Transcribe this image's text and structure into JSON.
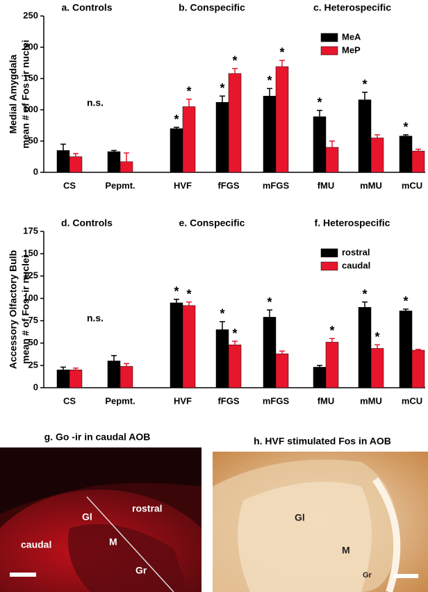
{
  "chart_data": [
    {
      "type": "bar",
      "groups": [
        "a. Controls",
        "b. Conspecific",
        "c. Heterospecific"
      ],
      "annotation": "n.s.",
      "ylabel": [
        "Medial Amygdala",
        "mean # of Fos -ir nuclei"
      ],
      "categories": [
        "CS",
        "Pepmt.",
        "HVF",
        "fFGS",
        "mFGS",
        "fMU",
        "mMU",
        "mCU"
      ],
      "series": [
        {
          "name": "MeA",
          "color": "#000000",
          "values": [
            35,
            33,
            70,
            112,
            122,
            89,
            116,
            58
          ],
          "errors": [
            10,
            2,
            2,
            10,
            12,
            10,
            12,
            2
          ],
          "significance": [
            null,
            null,
            "*",
            "*",
            "*",
            "*",
            "*",
            "*"
          ]
        },
        {
          "name": "MeP",
          "color": "#e8162c",
          "values": [
            25,
            17,
            105,
            158,
            169,
            40,
            55,
            34
          ],
          "errors": [
            5,
            14,
            12,
            8,
            10,
            10,
            5,
            3
          ],
          "significance": [
            null,
            null,
            "*",
            "*",
            "*",
            null,
            null,
            null
          ]
        }
      ],
      "ylim": [
        0,
        250
      ],
      "yticks": [
        0,
        50,
        100,
        150,
        200,
        250
      ],
      "legend": "upper right"
    },
    {
      "type": "bar",
      "groups": [
        "d. Controls",
        "e. Conspecific",
        "f. Heterospecific"
      ],
      "annotation": "n.s.",
      "ylabel": [
        "Accessory Olfactory Bulb",
        "mean # of Fos -ir nuclei"
      ],
      "categories": [
        "CS",
        "Pepmt.",
        "HVF",
        "fFGS",
        "mFGS",
        "fMU",
        "mMU",
        "mCU"
      ],
      "series": [
        {
          "name": "rostral",
          "color": "#000000",
          "values": [
            20,
            30,
            95,
            65,
            79,
            23,
            90,
            86
          ],
          "errors": [
            3,
            6,
            4,
            9,
            8,
            2,
            6,
            2
          ],
          "significance": [
            null,
            null,
            "*",
            "*",
            "*",
            null,
            "*",
            "*"
          ]
        },
        {
          "name": "caudal",
          "color": "#e8162c",
          "values": [
            20,
            24,
            92,
            48,
            38,
            51,
            44,
            42
          ],
          "errors": [
            2,
            3,
            4,
            4,
            3,
            4,
            4,
            1
          ],
          "significance": [
            null,
            null,
            "*",
            "*",
            null,
            "*",
            "*",
            null
          ]
        }
      ],
      "ylim": [
        0,
        175
      ],
      "yticks": [
        0,
        25,
        50,
        75,
        100,
        125,
        150,
        175
      ],
      "legend": "upper right"
    }
  ],
  "images": [
    {
      "title": "g. Go -ir in caudal AOB",
      "labels": [
        "Gl",
        "rostral",
        "caudal",
        "M",
        "Gr"
      ]
    },
    {
      "title": "h. HVF stimulated Fos in AOB",
      "labels": [
        "Gl",
        "M",
        "Gr"
      ]
    }
  ]
}
